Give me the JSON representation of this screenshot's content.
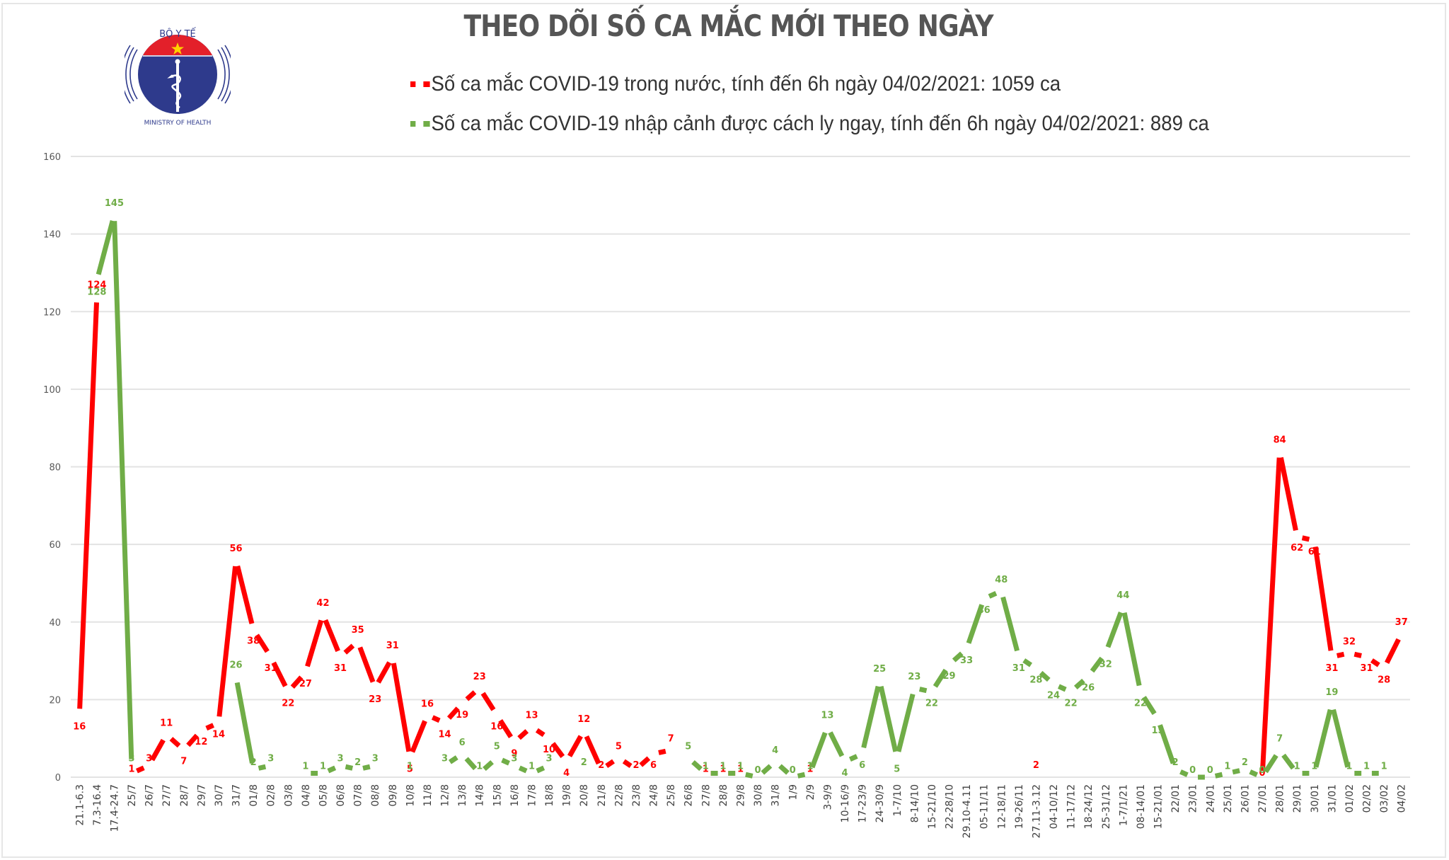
{
  "header": {
    "title": "THEO DÕI SỐ CA MẮC MỚI THEO NGÀY",
    "logo": {
      "top_text": "BỘ Y TẾ",
      "bottom_text": "MINISTRY OF HEALTH",
      "icon": "caduceus-icon"
    }
  },
  "legend": [
    {
      "label": "Số ca mắc COVID-19 trong nước, tính đến 6h ngày 04/02/2021: 1059 ca",
      "color": "#ff0000"
    },
    {
      "label": "Số ca mắc COVID-19 nhập cảnh được cách ly ngay, tính đến 6h ngày 04/02/2021: 889 ca",
      "color": "#70ad47"
    }
  ],
  "colors": {
    "domestic": "#ff0000",
    "imported": "#70ad47",
    "grid": "#e3e3e3",
    "title": "#555555"
  },
  "chart_data": {
    "type": "line",
    "title": "THEO DÕI SỐ CA MẮC MỚI THEO NGÀY",
    "xlabel": "",
    "ylabel": "",
    "ylim": [
      0,
      160
    ],
    "yticks": [
      0,
      20,
      40,
      60,
      80,
      100,
      120,
      140,
      160
    ],
    "grid": true,
    "legend_position": "top",
    "categories": [
      "21.1-6.3",
      "7.3-16.4",
      "17.4-24.7",
      "25/7",
      "26/7",
      "27/7",
      "28/7",
      "29/7",
      "30/7",
      "31/7",
      "01/8",
      "02/8",
      "03/8",
      "04/8",
      "05/8",
      "06/8",
      "07/8",
      "08/8",
      "09/8",
      "10/8",
      "11/8",
      "12/8",
      "13/8",
      "14/8",
      "15/8",
      "16/8",
      "17/8",
      "18/8",
      "19/8",
      "20/8",
      "21/8",
      "22/8",
      "23/8",
      "24/8",
      "25/8",
      "26/8",
      "27/8",
      "28/8",
      "29/8",
      "30/8",
      "31/8",
      "1/9",
      "2/9",
      "3-9/9",
      "10-16/9",
      "17-23/9",
      "24-30/9",
      "1-7/10",
      "8-14/10",
      "15-21/10",
      "22-28/10",
      "29.10-4.11",
      "05-11/11",
      "12-18/11",
      "19-26/11",
      "27.11-3.12",
      "04-10/12",
      "11-17/12",
      "18-24/12",
      "25-31/12",
      "1-7/1/21",
      "08-14/01",
      "15-21/01",
      "22/01",
      "23/01",
      "24/01",
      "25/01",
      "26/01",
      "27/01",
      "28/01",
      "29/01",
      "30/01",
      "31/01",
      "01/02",
      "02/02",
      "03/02",
      "04/02"
    ],
    "series": [
      {
        "name": "Số ca mắc COVID-19 trong nước",
        "color": "#ff0000",
        "values": [
          16,
          124,
          null,
          1,
          3,
          11,
          7,
          12,
          14,
          56,
          38,
          31,
          22,
          27,
          42,
          31,
          35,
          23,
          31,
          5,
          16,
          14,
          19,
          23,
          16,
          9,
          13,
          10,
          4,
          12,
          2,
          5,
          2,
          6,
          7,
          null,
          1,
          1,
          1,
          null,
          null,
          null,
          1,
          null,
          null,
          null,
          null,
          null,
          null,
          null,
          null,
          null,
          null,
          null,
          null,
          2,
          null,
          null,
          null,
          null,
          null,
          null,
          null,
          null,
          null,
          null,
          null,
          null,
          0,
          84,
          62,
          61,
          31,
          32,
          31,
          28,
          37
        ]
      },
      {
        "name": "Số ca mắc COVID-19 nhập cảnh được cách ly ngay",
        "color": "#70ad47",
        "values": [
          null,
          128,
          145,
          3,
          null,
          null,
          null,
          null,
          null,
          26,
          2,
          3,
          null,
          1,
          1,
          3,
          2,
          3,
          null,
          1,
          null,
          3,
          6,
          1,
          5,
          3,
          1,
          3,
          null,
          2,
          null,
          null,
          null,
          null,
          null,
          5,
          1,
          1,
          1,
          0,
          4,
          0,
          1,
          13,
          4,
          6,
          25,
          5,
          23,
          22,
          29,
          33,
          46,
          48,
          31,
          28,
          24,
          22,
          26,
          32,
          44,
          22,
          15,
          2,
          0,
          0,
          1,
          2,
          0,
          7,
          1,
          1,
          19,
          1,
          1,
          1,
          null
        ]
      }
    ]
  }
}
